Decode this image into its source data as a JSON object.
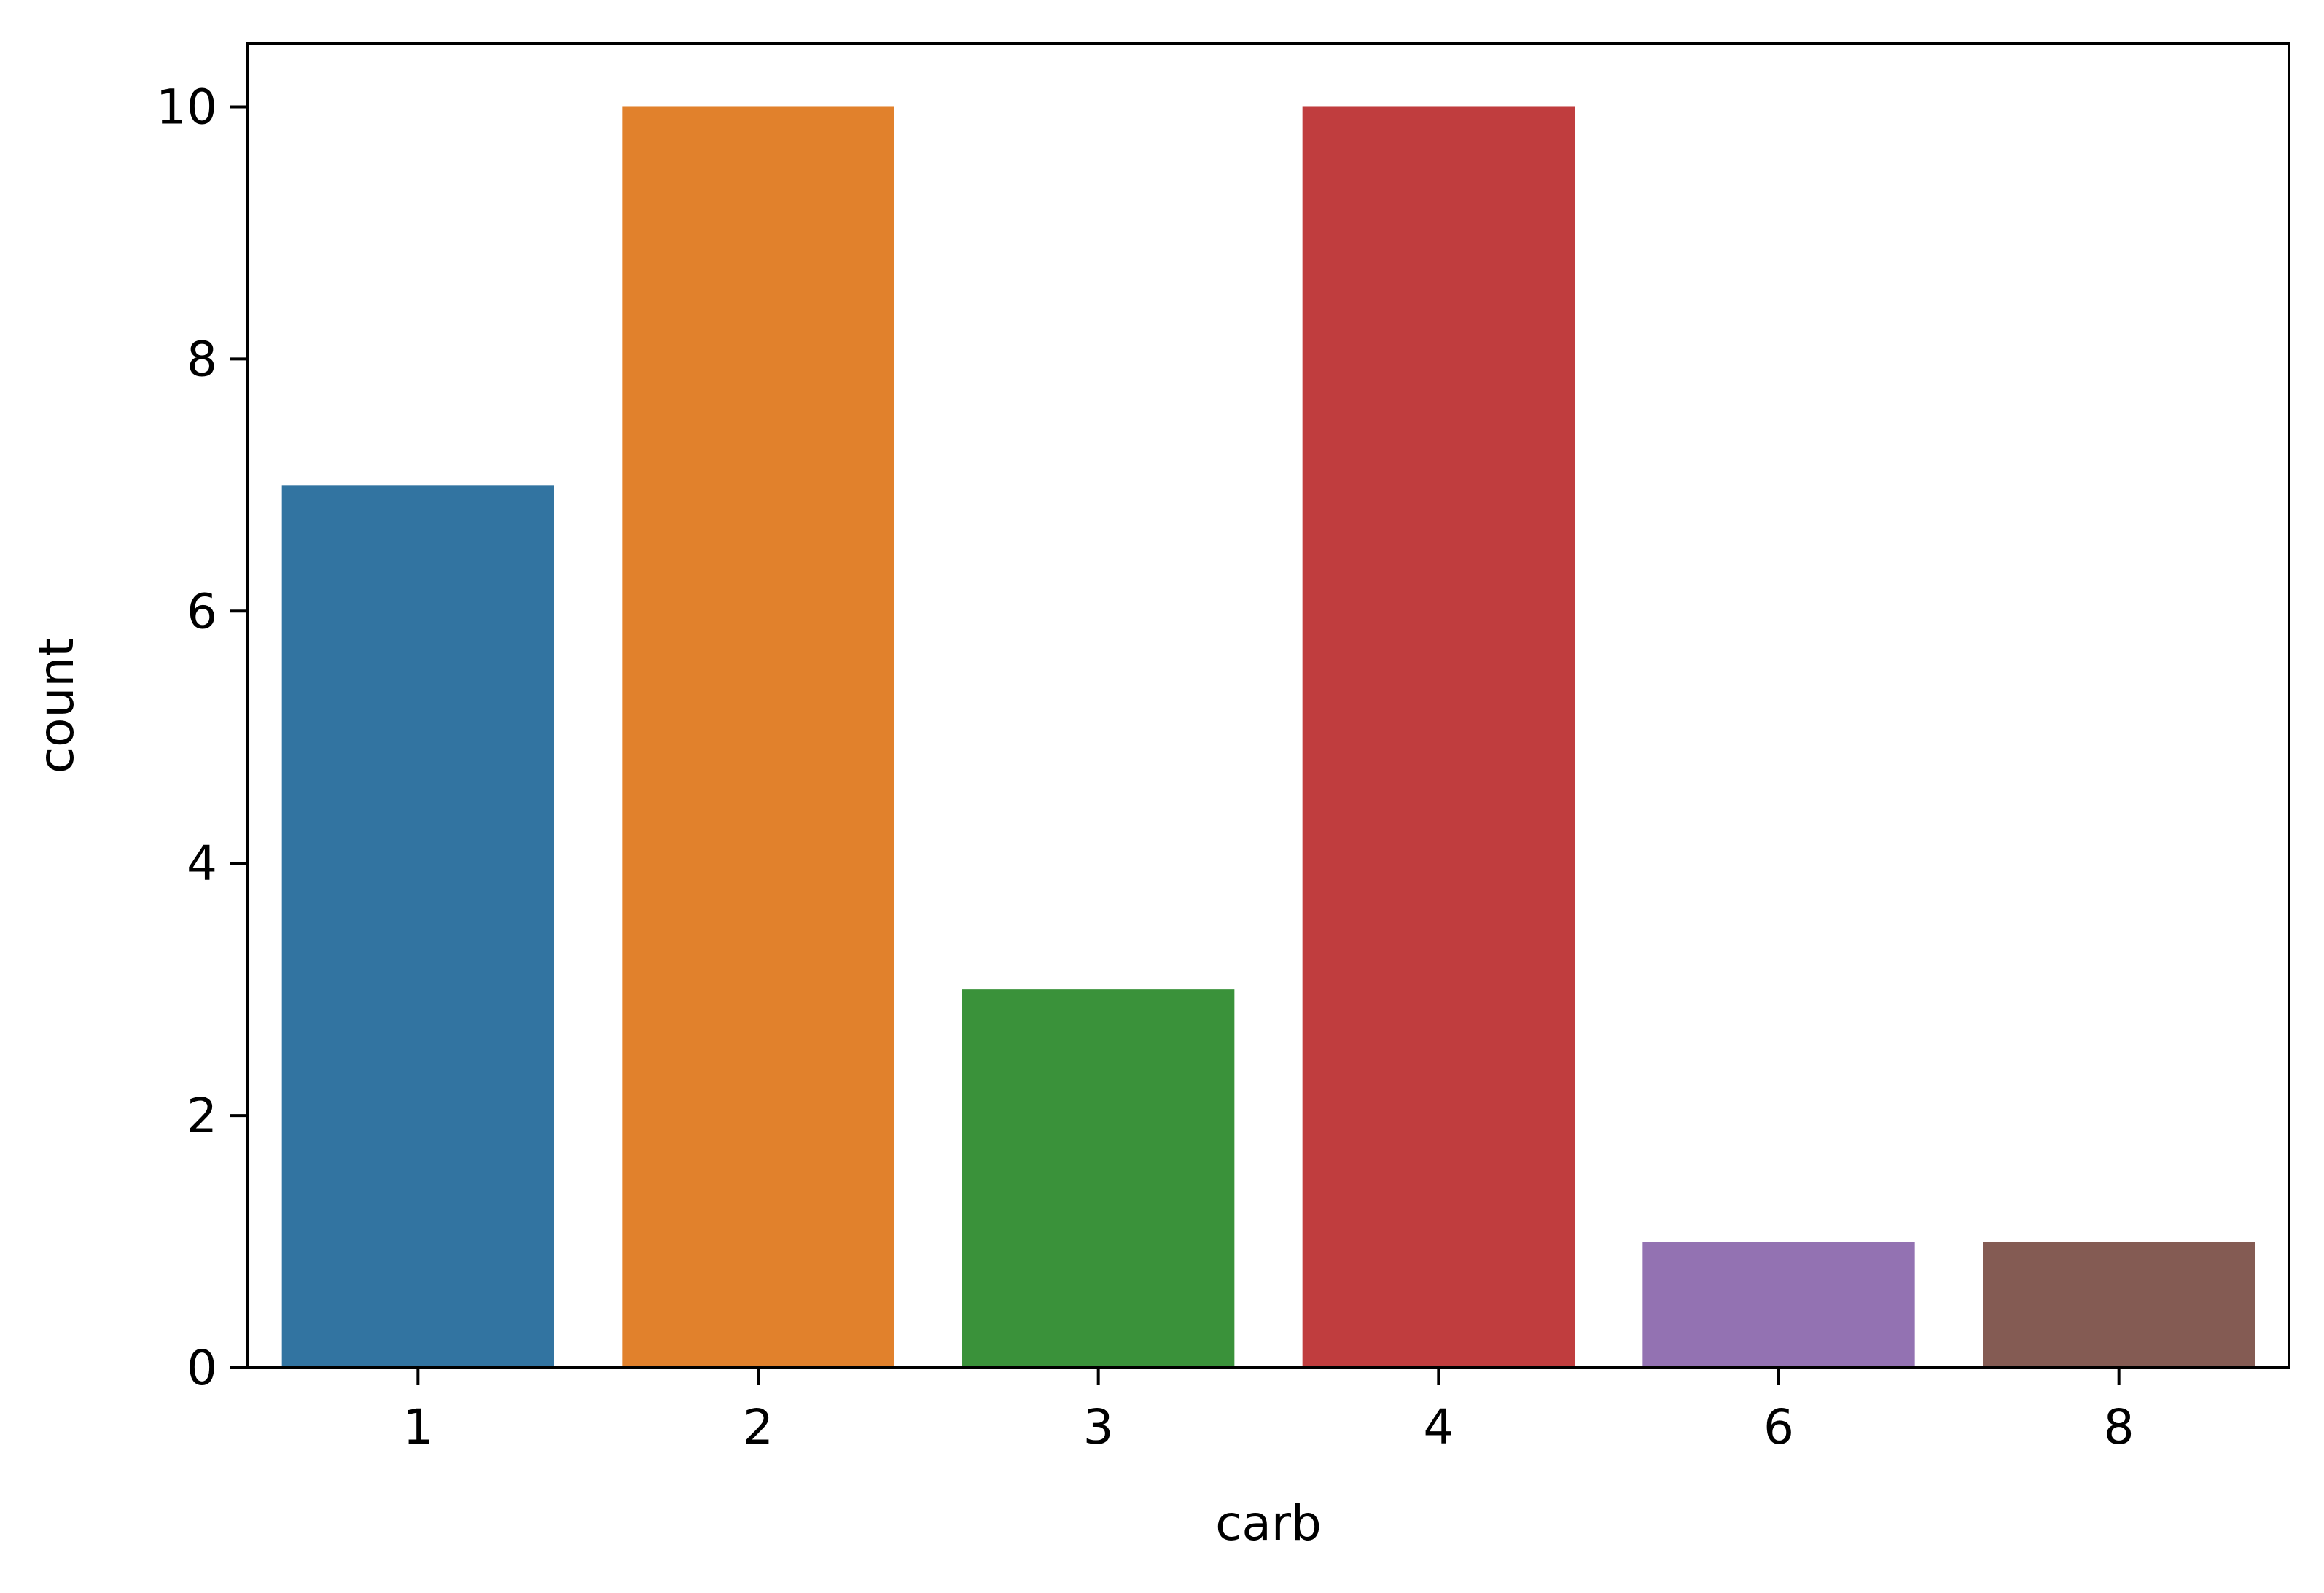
{
  "chart_data": {
    "type": "bar",
    "title": "",
    "xlabel": "carb",
    "ylabel": "count",
    "categories": [
      "1",
      "2",
      "3",
      "4",
      "6",
      "8"
    ],
    "values": [
      7,
      10,
      3,
      10,
      1,
      1
    ],
    "colors": [
      "#3274a1",
      "#e1812c",
      "#3a923a",
      "#c03d3e",
      "#9372b2",
      "#845b53"
    ],
    "ylim": [
      0,
      10.5
    ],
    "yticks": [
      0,
      2,
      4,
      6,
      8,
      10
    ],
    "grid": false,
    "legend": "none"
  }
}
